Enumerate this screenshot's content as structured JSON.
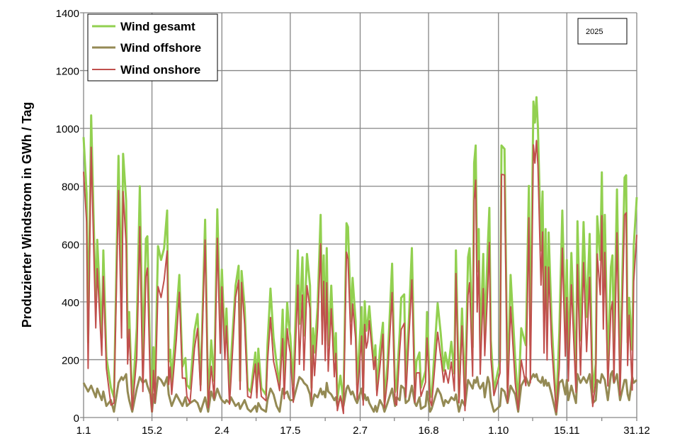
{
  "chart_data": {
    "type": "line",
    "title": "",
    "xlabel": "",
    "ylabel": "Produzierter Windstrom in GWh / Tag",
    "annotation": "2025",
    "ylim": [
      0,
      1400
    ],
    "yticks": [
      0,
      200,
      400,
      600,
      800,
      1000,
      1200,
      1400
    ],
    "xlim": [
      0,
      364
    ],
    "xticks": [
      {
        "day": 0,
        "label": "1.1"
      },
      {
        "day": 45,
        "label": "15.2"
      },
      {
        "day": 91,
        "label": "2.4"
      },
      {
        "day": 136,
        "label": "17.5"
      },
      {
        "day": 182,
        "label": "2.7"
      },
      {
        "day": 227,
        "label": "16.8"
      },
      {
        "day": 273,
        "label": "1.10"
      },
      {
        "day": 318,
        "label": "15.11"
      },
      {
        "day": 364,
        "label": "31.12"
      }
    ],
    "grid": true,
    "legend_position": "top-left",
    "colors": {
      "gesamt": "#92d050",
      "offshore": "#948a54",
      "onshore": "#c0504d"
    },
    "series_names": {
      "gesamt": "Wind gesamt",
      "offshore": "Wind offshore",
      "onshore": "Wind onshore"
    },
    "columns": [
      "day",
      "gesamt",
      "offshore",
      "onshore"
    ],
    "rows": [
      [
        0,
        970,
        120,
        850
      ],
      [
        2,
        775,
        100,
        675
      ],
      [
        3,
        260,
        90,
        170
      ],
      [
        5,
        1045,
        110,
        935
      ],
      [
        8,
        380,
        70,
        310
      ],
      [
        9,
        615,
        100,
        515
      ],
      [
        12,
        275,
        60,
        215
      ],
      [
        13,
        578,
        90,
        488
      ],
      [
        15,
        210,
        40,
        170
      ],
      [
        18,
        103,
        60,
        43
      ],
      [
        20,
        70,
        20,
        50
      ],
      [
        23,
        905,
        120,
        785
      ],
      [
        25,
        415,
        140,
        275
      ],
      [
        26,
        912,
        130,
        782
      ],
      [
        28,
        750,
        150,
        600
      ],
      [
        29,
        275,
        90,
        185
      ],
      [
        30,
        365,
        60,
        305
      ],
      [
        32,
        47,
        20,
        27
      ],
      [
        35,
        310,
        100,
        210
      ],
      [
        37,
        800,
        140,
        660
      ],
      [
        39,
        210,
        120,
        90
      ],
      [
        41,
        618,
        130,
        488
      ],
      [
        42,
        627,
        110,
        517
      ],
      [
        44,
        170,
        80,
        90
      ],
      [
        45,
        40,
        20,
        20
      ],
      [
        46,
        243,
        80,
        163
      ],
      [
        47,
        103,
        50,
        53
      ],
      [
        49,
        593,
        140,
        453
      ],
      [
        51,
        545,
        130,
        415
      ],
      [
        53,
        585,
        110,
        475
      ],
      [
        55,
        716,
        140,
        576
      ],
      [
        56,
        194,
        80,
        114
      ],
      [
        57,
        235,
        60,
        175
      ],
      [
        58,
        120,
        40,
        80
      ],
      [
        61,
        348,
        80,
        268
      ],
      [
        63,
        493,
        60,
        433
      ],
      [
        65,
        176,
        40,
        136
      ],
      [
        67,
        206,
        70,
        136
      ],
      [
        68,
        113,
        40,
        73
      ],
      [
        70,
        100,
        50,
        50
      ],
      [
        73,
        300,
        60,
        240
      ],
      [
        75,
        358,
        50,
        308
      ],
      [
        77,
        113,
        20,
        93
      ],
      [
        80,
        684,
        70,
        614
      ],
      [
        82,
        54,
        20,
        34
      ],
      [
        84,
        267,
        90,
        177
      ],
      [
        86,
        127,
        60,
        67
      ],
      [
        88,
        720,
        100,
        620
      ],
      [
        90,
        292,
        70,
        222
      ],
      [
        91,
        512,
        60,
        452
      ],
      [
        93,
        250,
        50,
        200
      ],
      [
        94,
        377,
        60,
        317
      ],
      [
        96,
        96,
        50,
        46
      ],
      [
        97,
        201,
        70,
        131
      ],
      [
        100,
        456,
        40,
        416
      ],
      [
        102,
        525,
        50,
        475
      ],
      [
        103,
        127,
        30,
        97
      ],
      [
        104,
        507,
        40,
        467
      ],
      [
        106,
        382,
        60,
        322
      ],
      [
        108,
        103,
        30,
        73
      ],
      [
        110,
        88,
        20,
        68
      ],
      [
        113,
        225,
        40,
        185
      ],
      [
        114,
        88,
        20,
        68
      ],
      [
        115,
        238,
        50,
        188
      ],
      [
        117,
        103,
        30,
        73
      ],
      [
        120,
        78,
        20,
        58
      ],
      [
        121,
        250,
        60,
        190
      ],
      [
        123,
        446,
        100,
        346
      ],
      [
        125,
        275,
        80,
        195
      ],
      [
        127,
        186,
        40,
        146
      ],
      [
        129,
        113,
        20,
        93
      ],
      [
        131,
        373,
        100,
        273
      ],
      [
        132,
        145,
        80,
        65
      ],
      [
        134,
        397,
        90,
        307
      ],
      [
        135,
        324,
        70,
        254
      ],
      [
        136,
        284,
        60,
        224
      ],
      [
        138,
        113,
        60,
        53
      ],
      [
        141,
        578,
        120,
        458
      ],
      [
        142,
        324,
        140,
        184
      ],
      [
        144,
        554,
        130,
        424
      ],
      [
        145,
        284,
        120,
        164
      ],
      [
        147,
        566,
        110,
        456
      ],
      [
        149,
        456,
        80,
        376
      ],
      [
        150,
        103,
        40,
        63
      ],
      [
        151,
        309,
        60,
        249
      ],
      [
        152,
        225,
        80,
        145
      ],
      [
        154,
        382,
        70,
        312
      ],
      [
        156,
        701,
        100,
        601
      ],
      [
        157,
        333,
        80,
        253
      ],
      [
        158,
        561,
        90,
        471
      ],
      [
        159,
        267,
        70,
        197
      ],
      [
        160,
        586,
        120,
        466
      ],
      [
        161,
        250,
        90,
        160
      ],
      [
        163,
        456,
        80,
        376
      ],
      [
        165,
        201,
        60,
        141
      ],
      [
        166,
        292,
        70,
        222
      ],
      [
        167,
        64,
        40,
        24
      ],
      [
        169,
        145,
        70,
        75
      ],
      [
        171,
        54,
        40,
        14
      ],
      [
        173,
        672,
        100,
        572
      ],
      [
        174,
        659,
        110,
        549
      ],
      [
        176,
        333,
        80,
        253
      ],
      [
        177,
        483,
        90,
        393
      ],
      [
        179,
        333,
        60,
        273
      ],
      [
        180,
        113,
        50,
        63
      ],
      [
        183,
        382,
        100,
        282
      ],
      [
        184,
        103,
        60,
        43
      ],
      [
        185,
        402,
        80,
        322
      ],
      [
        186,
        300,
        60,
        240
      ],
      [
        187,
        333,
        70,
        263
      ],
      [
        188,
        385,
        50,
        335
      ],
      [
        191,
        186,
        20,
        166
      ],
      [
        192,
        250,
        40,
        210
      ],
      [
        193,
        96,
        20,
        76
      ],
      [
        195,
        235,
        60,
        175
      ],
      [
        197,
        328,
        40,
        288
      ],
      [
        198,
        54,
        20,
        34
      ],
      [
        200,
        186,
        50,
        136
      ],
      [
        203,
        532,
        100,
        432
      ],
      [
        205,
        88,
        40,
        48
      ],
      [
        206,
        113,
        70,
        43
      ],
      [
        208,
        292,
        60,
        232
      ],
      [
        209,
        414,
        110,
        304
      ],
      [
        211,
        426,
        100,
        326
      ],
      [
        212,
        120,
        50,
        70
      ],
      [
        214,
        333,
        60,
        273
      ],
      [
        216,
        586,
        110,
        476
      ],
      [
        218,
        103,
        50,
        53
      ],
      [
        219,
        194,
        40,
        154
      ],
      [
        221,
        225,
        70,
        155
      ],
      [
        222,
        103,
        30,
        73
      ],
      [
        225,
        162,
        40,
        122
      ],
      [
        226,
        365,
        90,
        275
      ],
      [
        228,
        78,
        20,
        58
      ],
      [
        229,
        71,
        30,
        41
      ],
      [
        233,
        395,
        100,
        295
      ],
      [
        235,
        292,
        80,
        212
      ],
      [
        237,
        162,
        40,
        122
      ],
      [
        238,
        225,
        60,
        165
      ],
      [
        240,
        169,
        50,
        119
      ],
      [
        242,
        262,
        70,
        192
      ],
      [
        244,
        152,
        60,
        92
      ],
      [
        245,
        578,
        80,
        498
      ],
      [
        247,
        71,
        20,
        51
      ],
      [
        249,
        377,
        60,
        317
      ],
      [
        251,
        64,
        40,
        24
      ],
      [
        253,
        554,
        130,
        424
      ],
      [
        254,
        586,
        120,
        466
      ],
      [
        256,
        243,
        100,
        143
      ],
      [
        257,
        880,
        130,
        750
      ],
      [
        258,
        941,
        120,
        821
      ],
      [
        259,
        505,
        140,
        365
      ],
      [
        260,
        652,
        110,
        542
      ],
      [
        261,
        250,
        100,
        150
      ],
      [
        263,
        566,
        120,
        446
      ],
      [
        264,
        284,
        70,
        214
      ],
      [
        266,
        593,
        140,
        453
      ],
      [
        267,
        725,
        120,
        605
      ],
      [
        268,
        267,
        60,
        207
      ],
      [
        270,
        96,
        20,
        76
      ],
      [
        274,
        194,
        40,
        154
      ],
      [
        275,
        941,
        100,
        841
      ],
      [
        277,
        929,
        90,
        839
      ],
      [
        279,
        103,
        50,
        53
      ],
      [
        281,
        493,
        110,
        383
      ],
      [
        284,
        201,
        80,
        121
      ],
      [
        286,
        47,
        20,
        27
      ],
      [
        288,
        309,
        110,
        199
      ],
      [
        291,
        250,
        140,
        110
      ],
      [
        293,
        801,
        110,
        691
      ],
      [
        294,
        250,
        130,
        120
      ],
      [
        296,
        1093,
        150,
        943
      ],
      [
        297,
        1020,
        140,
        880
      ],
      [
        298,
        1108,
        150,
        958
      ],
      [
        299,
        1002,
        130,
        872
      ],
      [
        301,
        578,
        120,
        458
      ],
      [
        302,
        782,
        140,
        642
      ],
      [
        303,
        333,
        110,
        223
      ],
      [
        304,
        652,
        130,
        522
      ],
      [
        305,
        309,
        110,
        199
      ],
      [
        306,
        640,
        120,
        520
      ],
      [
        308,
        333,
        80,
        253
      ],
      [
        311,
        29,
        10,
        19
      ],
      [
        313,
        292,
        120,
        172
      ],
      [
        315,
        716,
        130,
        586
      ],
      [
        317,
        292,
        80,
        212
      ],
      [
        318,
        545,
        130,
        415
      ],
      [
        319,
        186,
        60,
        126
      ],
      [
        321,
        569,
        110,
        459
      ],
      [
        324,
        137,
        50,
        87
      ],
      [
        325,
        679,
        150,
        529
      ],
      [
        327,
        267,
        120,
        147
      ],
      [
        329,
        676,
        140,
        536
      ],
      [
        331,
        348,
        120,
        228
      ],
      [
        333,
        635,
        150,
        485
      ],
      [
        335,
        88,
        50,
        38
      ],
      [
        337,
        186,
        60,
        126
      ],
      [
        338,
        696,
        130,
        566
      ],
      [
        340,
        545,
        120,
        425
      ],
      [
        341,
        848,
        150,
        698
      ],
      [
        342,
        446,
        140,
        306
      ],
      [
        343,
        701,
        130,
        571
      ],
      [
        345,
        169,
        60,
        109
      ],
      [
        347,
        520,
        150,
        370
      ],
      [
        348,
        561,
        160,
        401
      ],
      [
        349,
        243,
        120,
        123
      ],
      [
        351,
        789,
        150,
        639
      ],
      [
        353,
        137,
        60,
        77
      ],
      [
        356,
        830,
        130,
        700
      ],
      [
        357,
        838,
        130,
        708
      ],
      [
        358,
        260,
        80,
        180
      ],
      [
        359,
        414,
        60,
        354
      ],
      [
        361,
        235,
        140,
        95
      ],
      [
        362,
        591,
        120,
        471
      ],
      [
        364,
        762,
        130,
        632
      ]
    ]
  }
}
